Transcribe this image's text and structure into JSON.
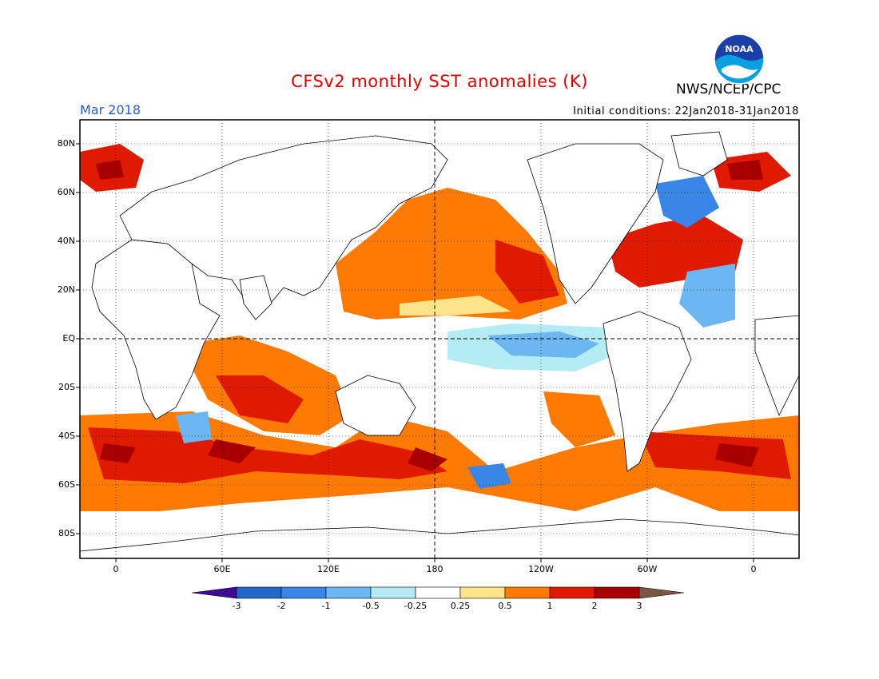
{
  "header": {
    "title": "CFSv2 monthly SST anomalies (K)",
    "agency": "NWS/NCEP/CPC",
    "logo_text": "NOAA",
    "period": "Mar 2018",
    "initial_conditions": "Initial conditions: 22Jan2018-31Jan2018"
  },
  "axes": {
    "lat_labels": [
      "80N",
      "60N",
      "40N",
      "20N",
      "EQ",
      "20S",
      "40S",
      "60S",
      "80S"
    ],
    "lon_labels": [
      "0",
      "60E",
      "120E",
      "180",
      "120W",
      "60W",
      "0"
    ]
  },
  "colorbar": {
    "ticks": [
      "-3",
      "-2",
      "-1",
      "-0.5",
      "-0.25",
      "0.25",
      "0.5",
      "1",
      "2",
      "3"
    ],
    "colors": [
      "#3d0a96",
      "#2268c8",
      "#3a86e6",
      "#6cb6f2",
      "#b4ecf6",
      "#ffffff",
      "#ffe48a",
      "#ff7a00",
      "#e01a00",
      "#a80000",
      "#7a5644"
    ]
  }
}
